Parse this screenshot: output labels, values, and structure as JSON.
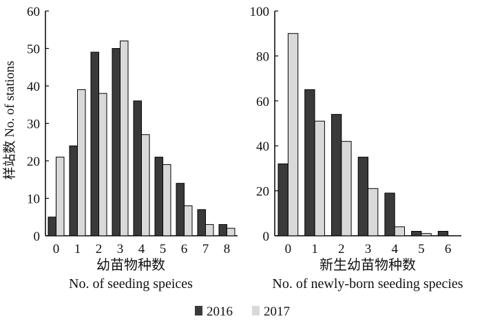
{
  "y_axis_label": "样站数 No. of stations",
  "legend": [
    {
      "label": "2016",
      "color": "#3a3a3a"
    },
    {
      "label": "2017",
      "color": "#d9d9d9"
    }
  ],
  "chart_data": [
    {
      "type": "bar",
      "title": "",
      "xlabel_cn": "幼苗物种数",
      "xlabel_en": "No. of seeding speices",
      "ylabel": "样站数 No. of stations",
      "categories": [
        "0",
        "1",
        "2",
        "3",
        "4",
        "5",
        "6",
        "7",
        "8"
      ],
      "ylim": [
        0,
        60
      ],
      "yticks": [
        0,
        10,
        20,
        30,
        40,
        50,
        60
      ],
      "series": [
        {
          "name": "2016",
          "color": "#3a3a3a",
          "values": [
            5,
            24,
            49,
            50,
            36,
            21,
            14,
            7,
            3
          ]
        },
        {
          "name": "2017",
          "color": "#d9d9d9",
          "values": [
            21,
            39,
            38,
            52,
            27,
            19,
            8,
            3,
            2
          ]
        }
      ],
      "grid": false
    },
    {
      "type": "bar",
      "title": "",
      "xlabel_cn": "新生幼苗物种数",
      "xlabel_en": "No. of newly-born seeding species",
      "ylabel": "",
      "categories": [
        "0",
        "1",
        "2",
        "3",
        "4",
        "5",
        "6"
      ],
      "ylim": [
        0,
        100
      ],
      "yticks": [
        0,
        20,
        40,
        60,
        80,
        100
      ],
      "series": [
        {
          "name": "2016",
          "color": "#3a3a3a",
          "values": [
            32,
            65,
            54,
            35,
            19,
            2,
            2
          ]
        },
        {
          "name": "2017",
          "color": "#d9d9d9",
          "values": [
            90,
            51,
            42,
            21,
            4,
            1,
            0
          ]
        }
      ],
      "grid": false
    }
  ]
}
